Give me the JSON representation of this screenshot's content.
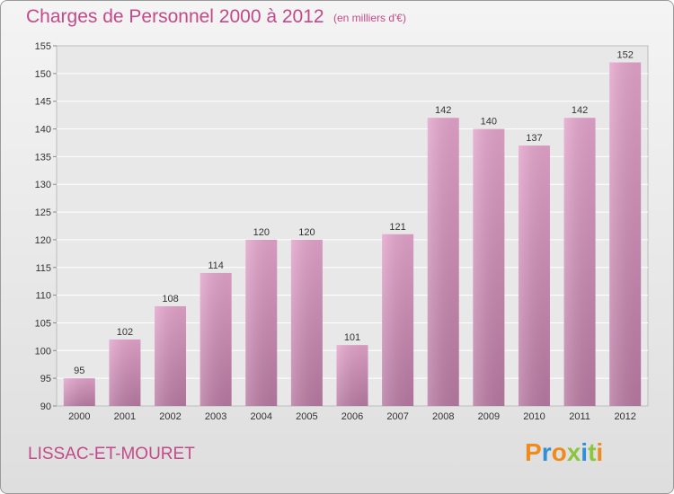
{
  "header": {
    "title": "Charges de Personnel 2000 à 2012",
    "unit": "(en milliers d'€)"
  },
  "footer": {
    "place": "LISSAC-ET-MOURET",
    "logo": "Proxiti"
  },
  "colors": {
    "accent": "#c34a8a",
    "bar_top": "#e3a4cb",
    "bar_bottom": "#b87aa2",
    "logo_letters": [
      "#f08a1c",
      "#2f8fd8",
      "#f08a1c",
      "#8cc63f",
      "#2f8fd8",
      "#8cc63f",
      "#f08a1c"
    ]
  },
  "chart_data": {
    "type": "bar",
    "title": "Charges de Personnel 2000 à 2012",
    "subtitle": "(en milliers d'€)",
    "categories": [
      "2000",
      "2001",
      "2002",
      "2003",
      "2004",
      "2005",
      "2006",
      "2007",
      "2008",
      "2009",
      "2010",
      "2011",
      "2012"
    ],
    "values": [
      95,
      102,
      108,
      114,
      120,
      120,
      101,
      121,
      142,
      140,
      137,
      142,
      152
    ],
    "data_labels": [
      "95",
      "102",
      "108",
      "114",
      "120",
      "120",
      "101",
      "121",
      "142",
      "140",
      "137",
      "142",
      "152"
    ],
    "y_ticks": [
      "90",
      "95",
      "100",
      "105",
      "110",
      "115",
      "120",
      "125",
      "130",
      "135",
      "140",
      "145",
      "150",
      "155"
    ],
    "ylim": [
      90,
      155
    ],
    "grid": true,
    "legend": "none"
  }
}
